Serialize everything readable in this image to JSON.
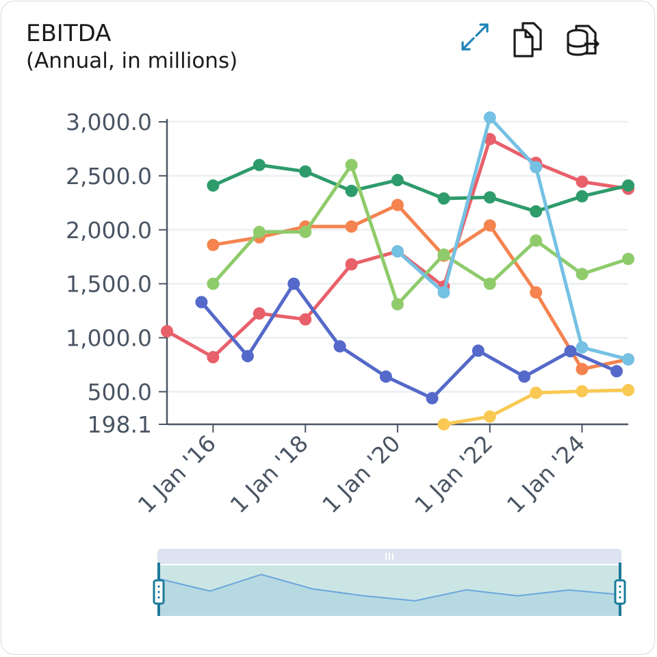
{
  "header": {
    "title": "EBITDA",
    "subtitle": "(Annual, in millions)"
  },
  "toolbar": {
    "expand_icon": "expand-arrows-icon",
    "copy_icon": "copy-documents-icon",
    "export_icon": "database-export-icon"
  },
  "colors": {
    "axis": "#4a5563",
    "grid": "#eef0f3",
    "navigator_fill": "#b9dcdc",
    "navigator_bar": "#dde3f0",
    "navigator_handle": "#1b7a99"
  },
  "chart_data": {
    "type": "line",
    "title": "EBITDA",
    "subtitle": "(Annual, in millions)",
    "xlabel": "",
    "ylabel": "",
    "ylim": [
      198.1,
      3000
    ],
    "x_range": [
      "2015-01-01",
      "2025-01-01"
    ],
    "yticks": [
      198.1,
      500,
      1000,
      1500,
      2000,
      2500,
      3000
    ],
    "ytick_labels": [
      "198.1",
      "500.0",
      "1,000.0",
      "1,500.0",
      "2,000.0",
      "2,500.0",
      "3,000.0"
    ],
    "xticks": [
      "2016-01-01",
      "2018-01-01",
      "2020-01-01",
      "2022-01-01",
      "2024-01-01"
    ],
    "xtick_labels": [
      "1 Jan '16",
      "1 Jan '18",
      "1 Jan '20",
      "1 Jan '22",
      "1 Jan '24"
    ],
    "grid": true,
    "legend": "none",
    "series": [
      {
        "color": "#e8606a",
        "points": [
          [
            "2015-01-01",
            1060
          ],
          [
            "2016-01-01",
            820
          ],
          [
            "2017-01-01",
            1225
          ],
          [
            "2018-01-01",
            1170
          ],
          [
            "2019-01-01",
            1680
          ],
          [
            "2020-01-01",
            1800
          ],
          [
            "2021-01-01",
            1475
          ],
          [
            "2022-01-01",
            2840
          ],
          [
            "2023-01-01",
            2620
          ],
          [
            "2024-01-01",
            2445
          ],
          [
            "2025-01-01",
            2380
          ]
        ]
      },
      {
        "color": "#2e9b6b",
        "points": [
          [
            "2016-01-01",
            2410
          ],
          [
            "2017-01-01",
            2600
          ],
          [
            "2018-01-01",
            2540
          ],
          [
            "2019-01-01",
            2360
          ],
          [
            "2020-01-01",
            2460
          ],
          [
            "2021-01-01",
            2290
          ],
          [
            "2022-01-01",
            2300
          ],
          [
            "2023-01-01",
            2170
          ],
          [
            "2024-01-01",
            2310
          ],
          [
            "2025-01-01",
            2410
          ]
        ]
      },
      {
        "color": "#f4834f",
        "points": [
          [
            "2016-01-01",
            1860
          ],
          [
            "2017-01-01",
            1930
          ],
          [
            "2018-01-01",
            2030
          ],
          [
            "2019-01-01",
            2030
          ],
          [
            "2020-01-01",
            2230
          ],
          [
            "2021-01-01",
            1760
          ],
          [
            "2022-01-01",
            2040
          ],
          [
            "2023-01-01",
            1420
          ],
          [
            "2024-01-01",
            710
          ],
          [
            "2025-01-01",
            800
          ]
        ]
      },
      {
        "color": "#8fcb6b",
        "points": [
          [
            "2016-01-01",
            1500
          ],
          [
            "2017-01-01",
            1980
          ],
          [
            "2018-01-01",
            1980
          ],
          [
            "2019-01-01",
            2600
          ],
          [
            "2020-01-01",
            1310
          ],
          [
            "2021-01-01",
            1770
          ],
          [
            "2022-01-01",
            1500
          ],
          [
            "2023-01-01",
            1900
          ],
          [
            "2024-01-01",
            1590
          ],
          [
            "2025-01-01",
            1730
          ]
        ]
      },
      {
        "color": "#5469c9",
        "points": [
          [
            "2015-10-01",
            1330
          ],
          [
            "2016-10-01",
            830
          ],
          [
            "2017-10-01",
            1500
          ],
          [
            "2018-10-01",
            920
          ],
          [
            "2019-10-01",
            640
          ],
          [
            "2020-10-01",
            440
          ],
          [
            "2021-10-01",
            880
          ],
          [
            "2022-10-01",
            640
          ],
          [
            "2023-10-01",
            875
          ],
          [
            "2024-10-01",
            690
          ]
        ]
      },
      {
        "color": "#74c1e3",
        "points": [
          [
            "2020-01-01",
            1800
          ],
          [
            "2021-01-01",
            1420
          ],
          [
            "2022-01-01",
            3040
          ],
          [
            "2023-01-01",
            2580
          ],
          [
            "2024-01-01",
            910
          ],
          [
            "2025-01-01",
            800
          ]
        ]
      },
      {
        "color": "#f9c954",
        "points": [
          [
            "2021-01-01",
            198.1
          ],
          [
            "2022-01-01",
            270
          ],
          [
            "2023-01-01",
            490
          ],
          [
            "2024-01-01",
            505
          ],
          [
            "2025-01-01",
            515
          ]
        ]
      }
    ],
    "navigator": {
      "values": [
        1330,
        830,
        1500,
        920,
        640,
        440,
        880,
        640,
        875,
        690
      ]
    }
  }
}
